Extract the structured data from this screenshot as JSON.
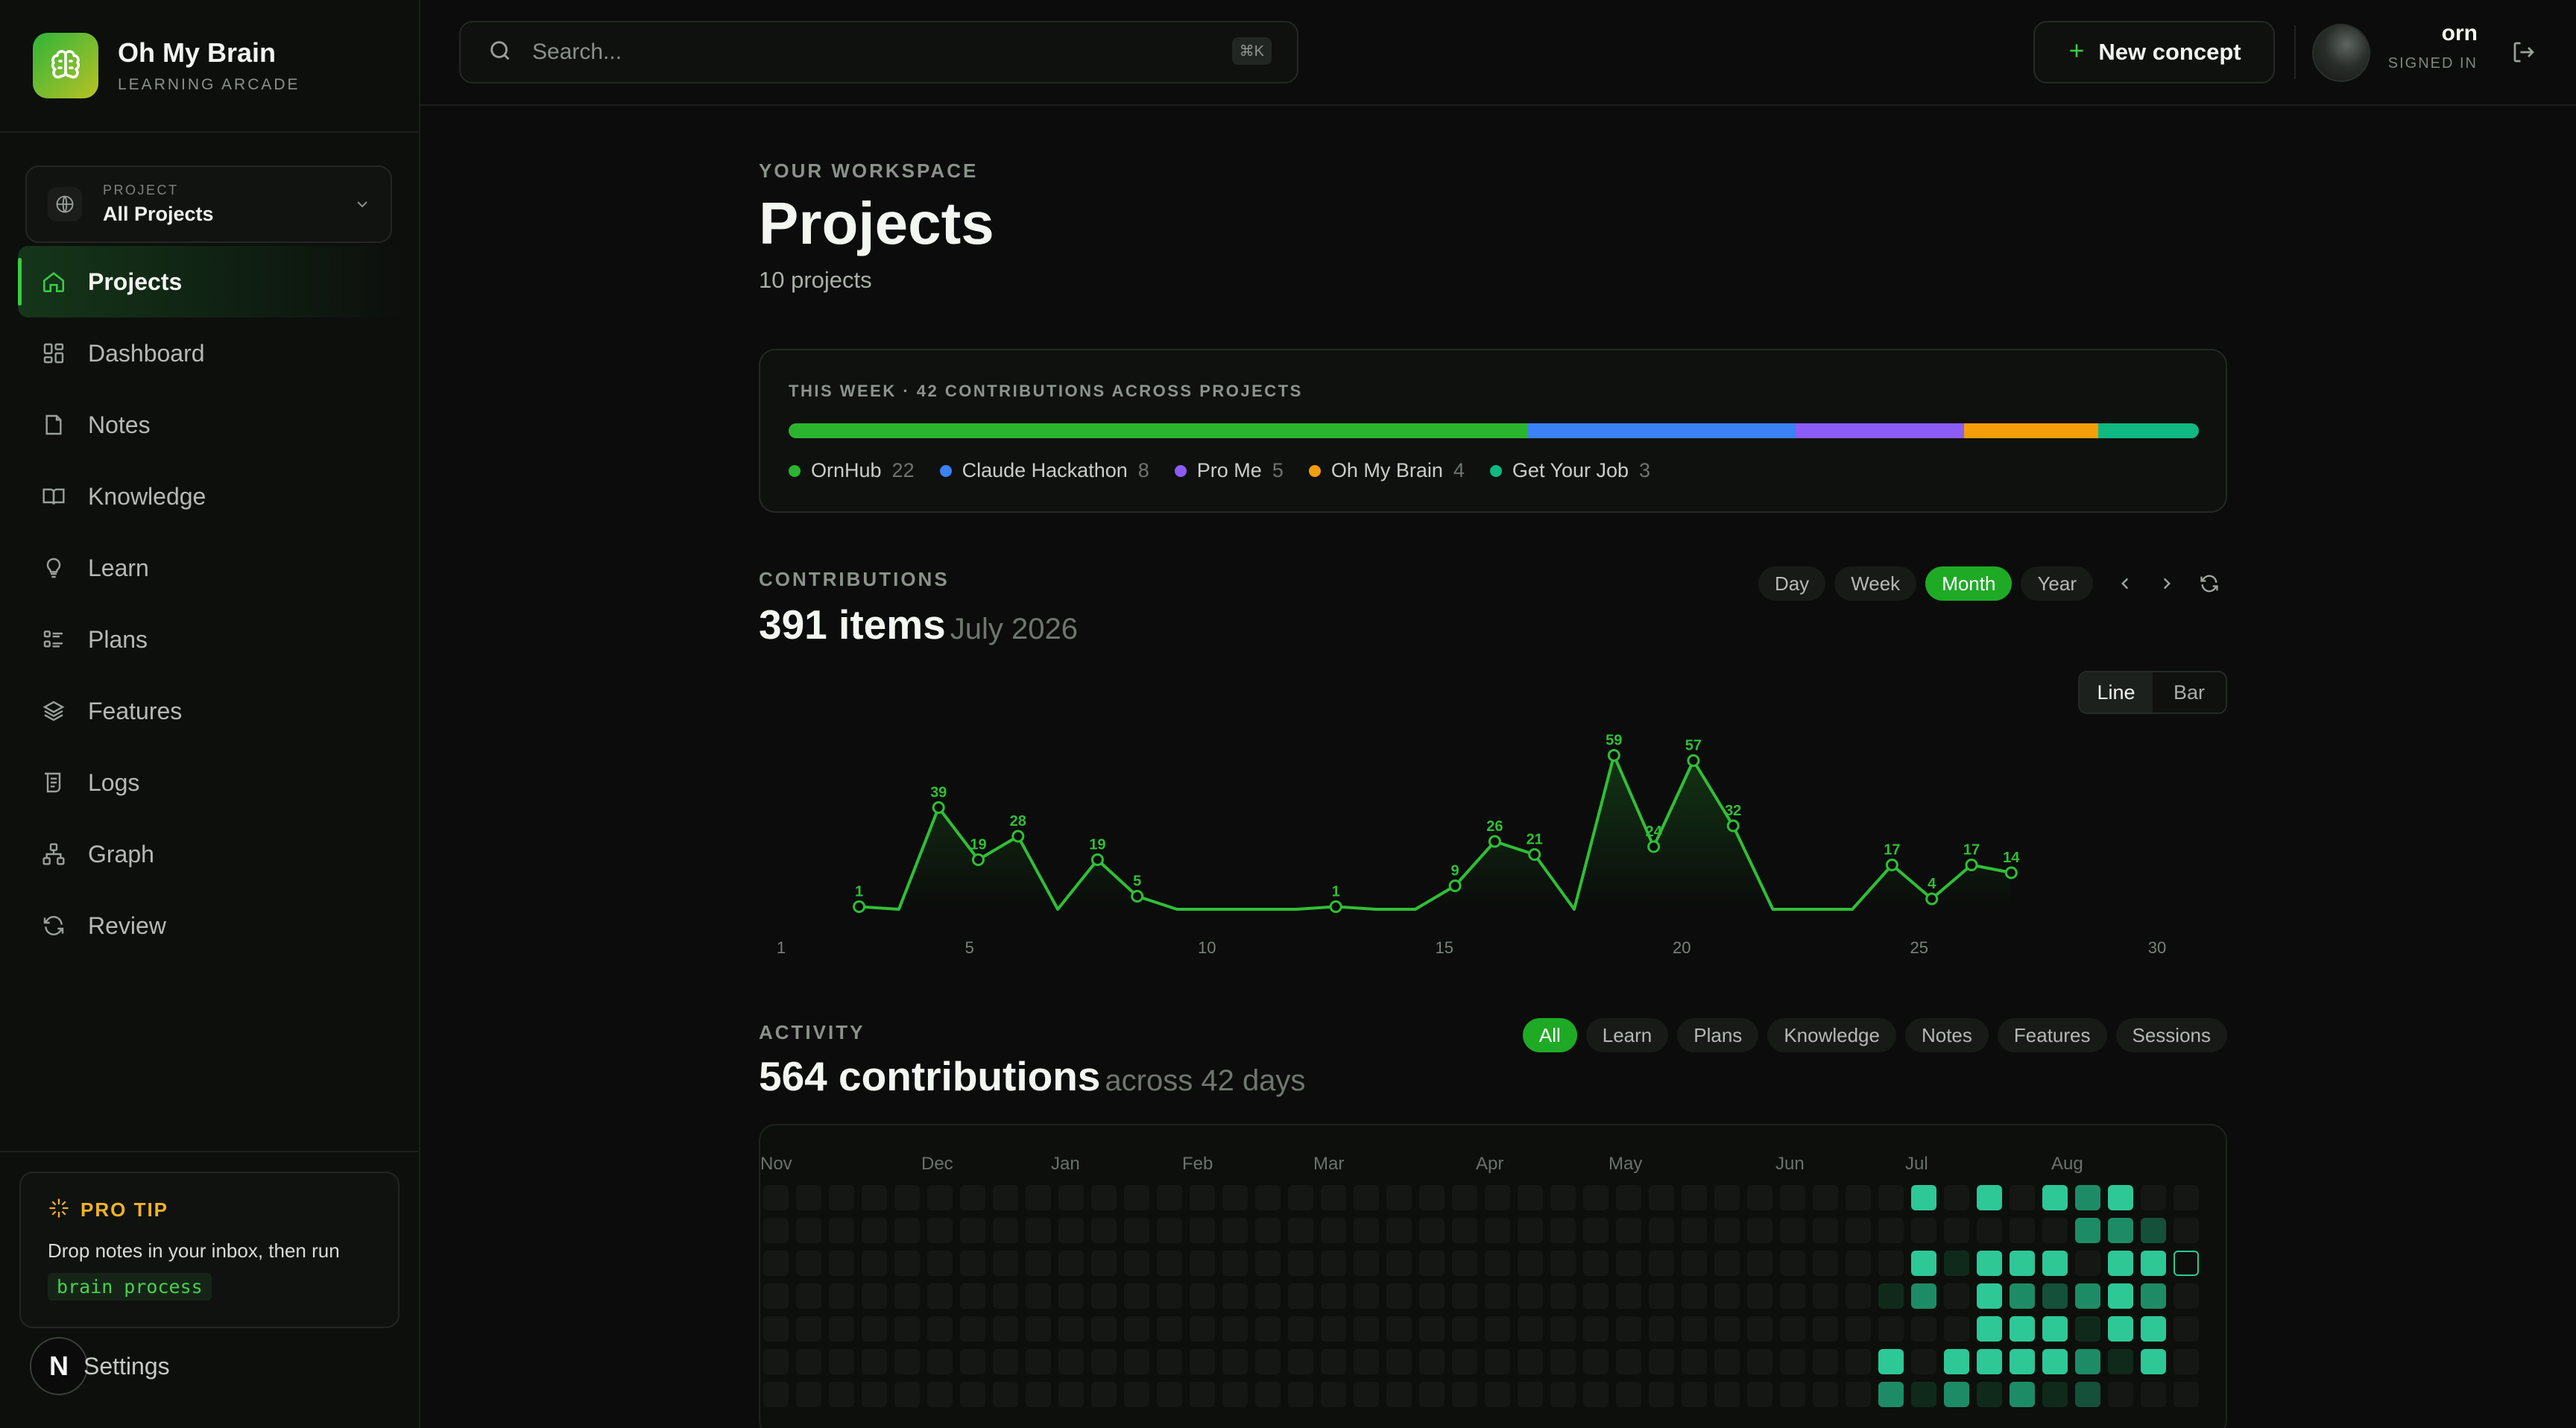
{
  "app": {
    "name": "Oh My Brain",
    "subtitle": "LEARNING ARCADE"
  },
  "project_select": {
    "label": "PROJECT",
    "value": "All Projects"
  },
  "sidebar": {
    "items": [
      {
        "label": "Projects",
        "icon": "home-icon",
        "active": true
      },
      {
        "label": "Dashboard",
        "icon": "dashboard-icon"
      },
      {
        "label": "Notes",
        "icon": "note-icon"
      },
      {
        "label": "Knowledge",
        "icon": "book-icon"
      },
      {
        "label": "Learn",
        "icon": "lightbulb-icon"
      },
      {
        "label": "Plans",
        "icon": "list-icon"
      },
      {
        "label": "Features",
        "icon": "layers-icon"
      },
      {
        "label": "Logs",
        "icon": "logs-icon"
      },
      {
        "label": "Graph",
        "icon": "graph-icon"
      },
      {
        "label": "Review",
        "icon": "refresh-icon"
      }
    ],
    "settings_label": "Settings",
    "settings_badge": "N"
  },
  "protip": {
    "title": "PRO TIP",
    "text": "Drop notes in your inbox, then run",
    "code": "brain process"
  },
  "search": {
    "placeholder": "Search...",
    "shortcut": "⌘K"
  },
  "header": {
    "new_button": "New concept"
  },
  "user": {
    "name": "orn",
    "status": "SIGNED IN"
  },
  "page": {
    "eyebrow": "YOUR WORKSPACE",
    "title": "Projects",
    "subtitle": "10 projects"
  },
  "week": {
    "title": "THIS WEEK · 42 CONTRIBUTIONS ACROSS PROJECTS",
    "items": [
      {
        "name": "OrnHub",
        "value": "22",
        "color": "#2bb52f"
      },
      {
        "name": "Claude Hackathon",
        "value": "8",
        "color": "#3b82f6"
      },
      {
        "name": "Pro Me",
        "value": "5",
        "color": "#8b5cf6"
      },
      {
        "name": "Oh My Brain",
        "value": "4",
        "color": "#f59e0b"
      },
      {
        "name": "Get Your Job",
        "value": "3",
        "color": "#10b981"
      }
    ]
  },
  "contributions": {
    "label": "CONTRIBUTIONS",
    "count": "391 items",
    "period": "July 2026",
    "ranges": [
      "Day",
      "Week",
      "Month",
      "Year"
    ],
    "active_range": "Month",
    "view_modes": [
      "Line",
      "Bar"
    ],
    "active_view": "Line"
  },
  "activity": {
    "label": "ACTIVITY",
    "count": "564 contributions",
    "span": "across 42 days",
    "filters": [
      "All",
      "Learn",
      "Plans",
      "Knowledge",
      "Notes",
      "Features",
      "Sessions"
    ],
    "active_filter": "All",
    "months": [
      "Nov",
      "Dec",
      "Jan",
      "Feb",
      "Mar",
      "Apr",
      "May",
      "Jun",
      "Jul",
      "Aug"
    ]
  },
  "chart_data": {
    "type": "line",
    "title": "",
    "xlabel": "",
    "ylabel": "",
    "x_ticks": [
      1,
      5,
      10,
      15,
      20,
      25,
      30
    ],
    "xlim": [
      1,
      30
    ],
    "series": [
      {
        "color": "#2fbf35",
        "points": [
          {
            "x": 3,
            "y": 1,
            "label": "1"
          },
          {
            "x": 4,
            "y": 0
          },
          {
            "x": 5,
            "y": 39,
            "label": "39"
          },
          {
            "x": 6,
            "y": 19,
            "label": "19"
          },
          {
            "x": 7,
            "y": 28,
            "label": "28"
          },
          {
            "x": 8,
            "y": 0
          },
          {
            "x": 9,
            "y": 19,
            "label": "19"
          },
          {
            "x": 10,
            "y": 5,
            "label": "5"
          },
          {
            "x": 11,
            "y": 0
          },
          {
            "x": 12,
            "y": 0
          },
          {
            "x": 13,
            "y": 0
          },
          {
            "x": 14,
            "y": 0
          },
          {
            "x": 15,
            "y": 1,
            "label": "1"
          },
          {
            "x": 16,
            "y": 0
          },
          {
            "x": 17,
            "y": 0
          },
          {
            "x": 18,
            "y": 9,
            "label": "9"
          },
          {
            "x": 19,
            "y": 26,
            "label": "26"
          },
          {
            "x": 20,
            "y": 21,
            "label": "21"
          },
          {
            "x": 21,
            "y": 0
          },
          {
            "x": 22,
            "y": 59,
            "label": "59"
          },
          {
            "x": 23,
            "y": 24,
            "label": "24"
          },
          {
            "x": 24,
            "y": 57,
            "label": "57"
          },
          {
            "x": 25,
            "y": 32,
            "label": "32"
          },
          {
            "x": 26,
            "y": 0
          },
          {
            "x": 27,
            "y": 0
          },
          {
            "x": 28,
            "y": 0
          },
          {
            "x": 29,
            "y": 17,
            "label": "17"
          },
          {
            "x": 30,
            "y": 4,
            "label": "4"
          },
          {
            "x": 31,
            "y": 17,
            "label": "17"
          },
          {
            "x": 32,
            "y": 14,
            "label": "14"
          }
        ]
      }
    ]
  },
  "heatmap": {
    "rows": 7,
    "cols": 44,
    "cells": [
      {
        "c": 34,
        "r": 6,
        "lvl": 3
      },
      {
        "c": 35,
        "r": 6,
        "lvl": 1
      },
      {
        "c": 36,
        "r": 6,
        "lvl": 3
      },
      {
        "c": 37,
        "r": 6,
        "lvl": 1
      },
      {
        "c": 38,
        "r": 6,
        "lvl": 3
      },
      {
        "c": 39,
        "r": 6,
        "lvl": 1
      },
      {
        "c": 40,
        "r": 6,
        "lvl": 2
      },
      {
        "c": 35,
        "r": 0,
        "lvl": 4
      },
      {
        "c": 37,
        "r": 0,
        "lvl": 4
      },
      {
        "c": 39,
        "r": 0,
        "lvl": 4
      },
      {
        "c": 40,
        "r": 0,
        "lvl": 3
      },
      {
        "c": 41,
        "r": 0,
        "lvl": 4
      },
      {
        "c": 40,
        "r": 1,
        "lvl": 3
      },
      {
        "c": 41,
        "r": 1,
        "lvl": 3
      },
      {
        "c": 42,
        "r": 1,
        "lvl": 2
      },
      {
        "c": 35,
        "r": 2,
        "lvl": 4
      },
      {
        "c": 36,
        "r": 2,
        "lvl": 1
      },
      {
        "c": 37,
        "r": 2,
        "lvl": 4
      },
      {
        "c": 38,
        "r": 2,
        "lvl": 4
      },
      {
        "c": 39,
        "r": 2,
        "lvl": 4
      },
      {
        "c": 41,
        "r": 2,
        "lvl": 4
      },
      {
        "c": 42,
        "r": 2,
        "lvl": 4
      },
      {
        "c": 43,
        "r": 2,
        "lvl": 0,
        "outline": true
      },
      {
        "c": 34,
        "r": 3,
        "lvl": 1
      },
      {
        "c": 35,
        "r": 3,
        "lvl": 3
      },
      {
        "c": 37,
        "r": 3,
        "lvl": 4
      },
      {
        "c": 38,
        "r": 3,
        "lvl": 3
      },
      {
        "c": 39,
        "r": 3,
        "lvl": 2
      },
      {
        "c": 40,
        "r": 3,
        "lvl": 3
      },
      {
        "c": 41,
        "r": 3,
        "lvl": 4
      },
      {
        "c": 42,
        "r": 3,
        "lvl": 3
      },
      {
        "c": 37,
        "r": 4,
        "lvl": 4
      },
      {
        "c": 38,
        "r": 4,
        "lvl": 4
      },
      {
        "c": 39,
        "r": 4,
        "lvl": 4
      },
      {
        "c": 40,
        "r": 4,
        "lvl": 1
      },
      {
        "c": 41,
        "r": 4,
        "lvl": 4
      },
      {
        "c": 42,
        "r": 4,
        "lvl": 4
      },
      {
        "c": 34,
        "r": 5,
        "lvl": 4
      },
      {
        "c": 36,
        "r": 5,
        "lvl": 4
      },
      {
        "c": 37,
        "r": 5,
        "lvl": 4
      },
      {
        "c": 38,
        "r": 5,
        "lvl": 4
      },
      {
        "c": 39,
        "r": 5,
        "lvl": 4
      },
      {
        "c": 40,
        "r": 5,
        "lvl": 3
      },
      {
        "c": 41,
        "r": 5,
        "lvl": 1
      },
      {
        "c": 42,
        "r": 5,
        "lvl": 4
      }
    ],
    "level_colors": [
      "#141714",
      "#0f2a1a",
      "#14503a",
      "#1d8c66",
      "#2dc896"
    ]
  }
}
